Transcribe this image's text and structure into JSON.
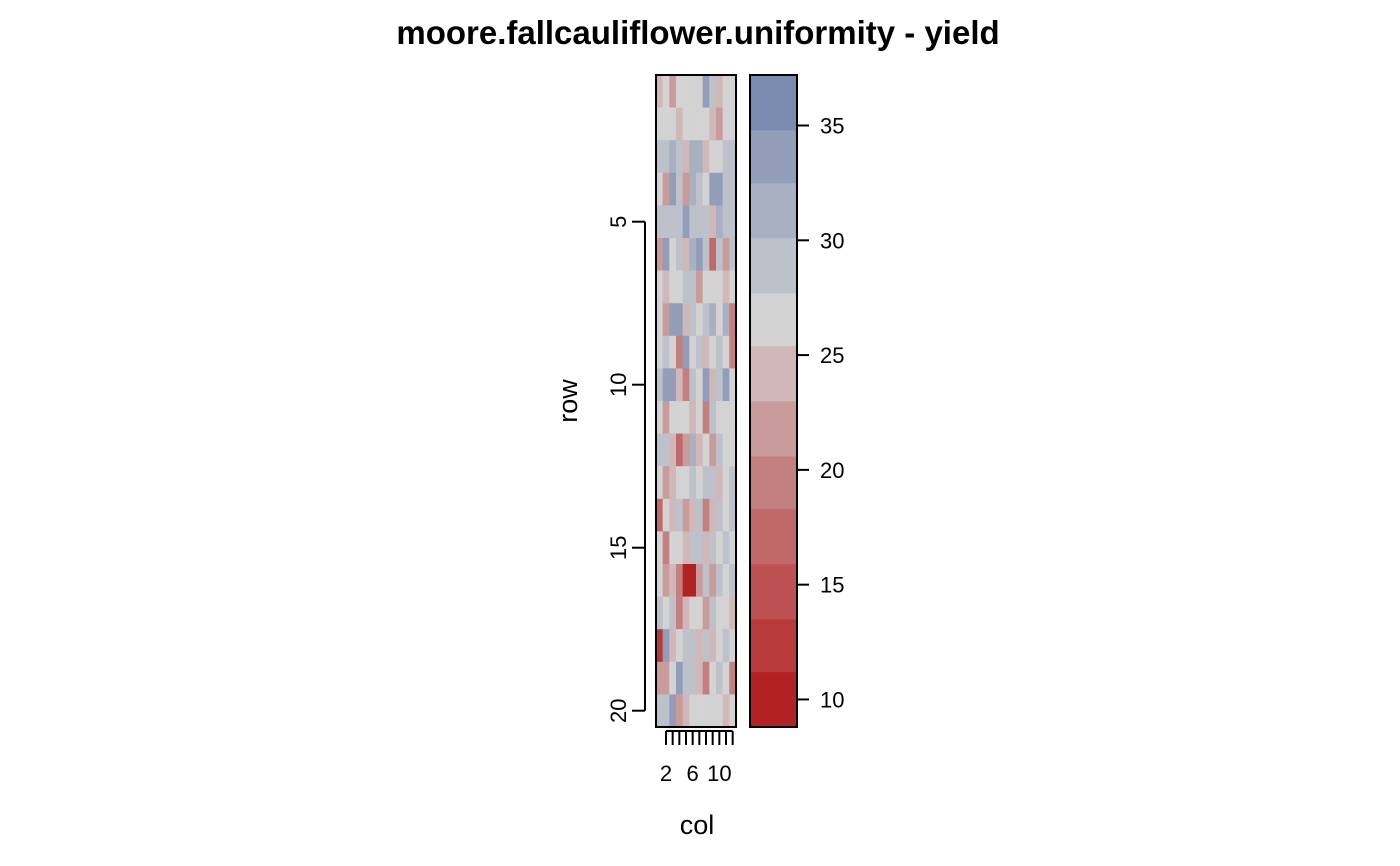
{
  "chart_data": {
    "type": "heatmap",
    "title": "moore.fallcauliflower.uniformity - yield",
    "xlabel": "col",
    "ylabel": "row",
    "x_range": [
      1,
      12
    ],
    "y_range": [
      1,
      20
    ],
    "x_ticks": [
      1,
      2,
      3,
      4,
      5,
      6,
      7,
      8,
      9,
      10,
      11,
      12
    ],
    "x_tick_labels": [
      {
        "value": 2,
        "label": "2"
      },
      {
        "value": 6,
        "label": "6"
      },
      {
        "value": 10,
        "label": "10"
      }
    ],
    "y_ticks": [
      {
        "value": 5,
        "label": "5"
      },
      {
        "value": 10,
        "label": "10"
      },
      {
        "value": 15,
        "label": "15"
      },
      {
        "value": 20,
        "label": "20"
      }
    ],
    "y_reversed": true,
    "legend": {
      "position": "right",
      "range": [
        8.8,
        37.2
      ],
      "ticks": [
        10,
        15,
        20,
        25,
        30,
        35
      ],
      "bins": [
        {
          "from": 8.8,
          "to": 11.2,
          "color": "#B22222"
        },
        {
          "from": 11.2,
          "to": 13.5,
          "color": "#B83939"
        },
        {
          "from": 13.5,
          "to": 15.9,
          "color": "#BD5050"
        },
        {
          "from": 15.9,
          "to": 18.3,
          "color": "#C16868"
        },
        {
          "from": 18.3,
          "to": 20.6,
          "color": "#C47F7F"
        },
        {
          "from": 20.6,
          "to": 23.0,
          "color": "#C99B9B"
        },
        {
          "from": 23.0,
          "to": 25.4,
          "color": "#D0B8B8"
        },
        {
          "from": 25.4,
          "to": 27.7,
          "color": "#D3D3D3"
        },
        {
          "from": 27.7,
          "to": 30.1,
          "color": "#BDC1CA"
        },
        {
          "from": 30.1,
          "to": 32.5,
          "color": "#A8B0C2"
        },
        {
          "from": 32.5,
          "to": 34.8,
          "color": "#919DB9"
        },
        {
          "from": 34.8,
          "to": 37.2,
          "color": "#7A8BB0"
        }
      ]
    },
    "values": [
      [
        24,
        27,
        22,
        26,
        26,
        26,
        26,
        34,
        28,
        24,
        27,
        26
      ],
      [
        27,
        26,
        26,
        24,
        26,
        26,
        26,
        27,
        24,
        22,
        26,
        26
      ],
      [
        30,
        30,
        32,
        30,
        24,
        32,
        32,
        24,
        26,
        26,
        30,
        30
      ],
      [
        26,
        22,
        33,
        28,
        22,
        32,
        28,
        26,
        34,
        33,
        28,
        30
      ],
      [
        30,
        30,
        30,
        30,
        33,
        30,
        30,
        30,
        24,
        32,
        30,
        30
      ],
      [
        22,
        33,
        26,
        30,
        24,
        32,
        34,
        30,
        18,
        30,
        22,
        30
      ],
      [
        26,
        24,
        26,
        26,
        30,
        30,
        22,
        26,
        26,
        26,
        24,
        26
      ],
      [
        26,
        22,
        33,
        34,
        24,
        30,
        26,
        30,
        32,
        26,
        32,
        20
      ],
      [
        26,
        30,
        27,
        20,
        33,
        26,
        30,
        24,
        27,
        30,
        27,
        20
      ],
      [
        28,
        34,
        33,
        24,
        20,
        30,
        26,
        33,
        24,
        30,
        33,
        26
      ],
      [
        26,
        22,
        26,
        26,
        26,
        24,
        26,
        20,
        30,
        26,
        26,
        26
      ],
      [
        30,
        28,
        24,
        18,
        22,
        32,
        24,
        26,
        22,
        30,
        26,
        26
      ],
      [
        26,
        22,
        24,
        26,
        26,
        30,
        26,
        30,
        28,
        24,
        26,
        28
      ],
      [
        16,
        26,
        24,
        30,
        22,
        24,
        30,
        20,
        24,
        30,
        26,
        30
      ],
      [
        26,
        19,
        26,
        26,
        24,
        30,
        28,
        24,
        30,
        26,
        28,
        26
      ],
      [
        26,
        22,
        24,
        20,
        10,
        10,
        22,
        28,
        22,
        30,
        26,
        30
      ],
      [
        30,
        26,
        30,
        20,
        24,
        26,
        26,
        22,
        30,
        26,
        26,
        24
      ],
      [
        12,
        34,
        24,
        26,
        30,
        30,
        24,
        30,
        24,
        26,
        30,
        26
      ],
      [
        22,
        22,
        26,
        33,
        28,
        30,
        24,
        20,
        26,
        30,
        26,
        20
      ],
      [
        30,
        28,
        34,
        22,
        24,
        26,
        26,
        26,
        26,
        26,
        24,
        26
      ]
    ]
  }
}
